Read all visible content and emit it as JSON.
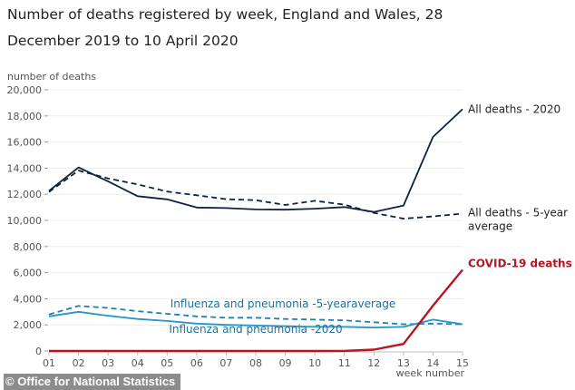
{
  "chart_data": {
    "type": "line",
    "title": "Number of deaths registered by week, England and Wales, 28 December 2019 to 10 April 2020",
    "xlabel": "week number",
    "ylabel": "number of deaths",
    "ylim": [
      0,
      20000
    ],
    "yticks": [
      0,
      2000,
      4000,
      6000,
      8000,
      10000,
      12000,
      14000,
      16000,
      18000,
      20000
    ],
    "ytick_labels": [
      "0",
      "2,000",
      "4,000",
      "6,000",
      "8,000",
      "10,000",
      "12,000",
      "14,000",
      "16,000",
      "18,000",
      "20,000"
    ],
    "categories": [
      "01",
      "02",
      "03",
      "04",
      "05",
      "06",
      "07",
      "08",
      "09",
      "10",
      "11",
      "12",
      "13",
      "14",
      "15"
    ],
    "grid": true,
    "series": [
      {
        "name": "All deaths - 2020",
        "label_lines": [
          "All deaths - 2020"
        ],
        "color": "#0f2340",
        "dashed": false,
        "label_color": "#222222",
        "values": [
          12254,
          14058,
          12990,
          11856,
          11612,
          10986,
          10944,
          10841,
          10816,
          10895,
          11019,
          10645,
          11141,
          16387,
          18516
        ]
      },
      {
        "name": "All deaths - 5-year average",
        "label_lines": [
          "All deaths - 5-year",
          "average"
        ],
        "color": "#0f2340",
        "dashed": true,
        "label_color": "#222222",
        "values": [
          12175,
          13822,
          13216,
          12760,
          12206,
          11925,
          11627,
          11548,
          11183,
          11498,
          11205,
          10573,
          10130,
          10305,
          10520
        ]
      },
      {
        "name": "Influenza and pneumonia -5-yearaverage",
        "label_lines": [
          "Influenza and pneumonia -5-yearaverage"
        ],
        "color": "#1f7fae",
        "dashed": true,
        "label_color": "#1f6f9a",
        "values": [
          2800,
          3450,
          3300,
          3050,
          2850,
          2650,
          2550,
          2550,
          2450,
          2400,
          2350,
          2200,
          2050,
          2100,
          2050
        ]
      },
      {
        "name": "Influenza and pneumonia -2020",
        "label_lines": [
          "Influenza and pneumonia -2020"
        ],
        "color": "#2495c9",
        "dashed": false,
        "label_color": "#1f6f9a",
        "values": [
          2650,
          3000,
          2700,
          2450,
          2300,
          2100,
          2000,
          1950,
          1900,
          1850,
          1850,
          1800,
          1850,
          2400,
          2050
        ]
      },
      {
        "name": "COVID-19 deaths",
        "label_lines": [
          "COVID-19 deaths"
        ],
        "color": "#b5161f",
        "dashed": false,
        "label_color": "#b5161f",
        "bold": true,
        "values": [
          0,
          0,
          0,
          0,
          0,
          0,
          0,
          0,
          0,
          0,
          5,
          103,
          539,
          3475,
          6213
        ]
      }
    ],
    "legend": "inline labels at line ends",
    "source": "© Office for National Statistics"
  },
  "header": {
    "title_line1": "Number of deaths registered by week, England and Wales, 28",
    "title_line2": "December 2019 to 10 April 2020"
  },
  "footer": {
    "credit": "© Office for National Statistics"
  }
}
